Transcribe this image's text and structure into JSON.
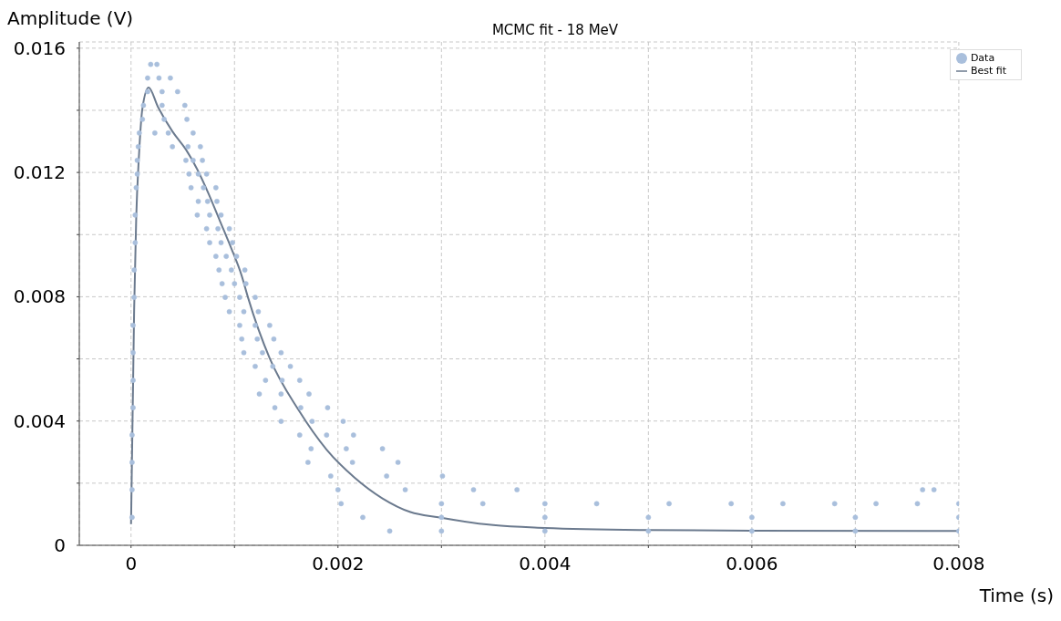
{
  "chart_data": {
    "type": "scatter",
    "title": "MCMC fit - 18 MeV",
    "xlabel": "Time (s)",
    "ylabel": "Amplitude (V)",
    "xlim": [
      -0.0005,
      0.008
    ],
    "ylim": [
      0,
      0.0162
    ],
    "xticks": [
      {
        "value": 0,
        "label": "0"
      },
      {
        "value": 0.001,
        "label": null
      },
      {
        "value": 0.002,
        "label": "0.002"
      },
      {
        "value": 0.003,
        "label": null
      },
      {
        "value": 0.004,
        "label": "0.004"
      },
      {
        "value": 0.005,
        "label": null
      },
      {
        "value": 0.006,
        "label": "0.006"
      },
      {
        "value": 0.007,
        "label": null
      },
      {
        "value": 0.008,
        "label": "0.008"
      }
    ],
    "yticks": [
      {
        "value": 0,
        "label": "0"
      },
      {
        "value": 0.002,
        "label": null
      },
      {
        "value": 0.004,
        "label": "0.004"
      },
      {
        "value": 0.006,
        "label": null
      },
      {
        "value": 0.008,
        "label": "0.008"
      },
      {
        "value": 0.01,
        "label": null
      },
      {
        "value": 0.012,
        "label": "0.012"
      },
      {
        "value": 0.014,
        "label": null
      },
      {
        "value": 0.016,
        "label": "0.016"
      }
    ],
    "grid": true,
    "legend": "top right",
    "line_style": "solid",
    "series": [
      {
        "name": "Data",
        "marker": "circle",
        "color": "#a9bfdc",
        "x": [
          1e-05,
          1e-05,
          1e-05,
          1e-05,
          2e-05,
          2e-05,
          2e-05,
          2e-05,
          3e-05,
          3e-05,
          4e-05,
          4e-05,
          5e-05,
          6e-05,
          6e-05,
          7e-05,
          0.00019,
          0.00025,
          0.00016,
          0.00027,
          0.00038,
          0.00016,
          0.0003,
          0.00045,
          0.00012,
          0.0003,
          0.00052,
          0.00011,
          0.00032,
          0.00054,
          8e-05,
          0.00023,
          0.00036,
          0.0006,
          0.0004,
          0.00055,
          0.00067,
          0.00053,
          0.0006,
          0.00069,
          0.00056,
          0.00065,
          0.00073,
          0.00058,
          0.0007,
          0.00082,
          0.00065,
          0.00074,
          0.00083,
          0.00064,
          0.00076,
          0.00087,
          0.00073,
          0.00084,
          0.00095,
          0.00076,
          0.00087,
          0.00098,
          0.00082,
          0.00092,
          0.00102,
          0.00085,
          0.00097,
          0.0011,
          0.00088,
          0.001,
          0.00111,
          0.00091,
          0.00105,
          0.0012,
          0.00095,
          0.00109,
          0.00123,
          0.00105,
          0.0012,
          0.00134,
          0.00107,
          0.00122,
          0.00138,
          0.00109,
          0.00127,
          0.00145,
          0.0012,
          0.00137,
          0.00154,
          0.0013,
          0.00146,
          0.00163,
          0.00124,
          0.00145,
          0.00172,
          0.00139,
          0.00164,
          0.0019,
          0.00145,
          0.00175,
          0.00205,
          0.00163,
          0.00189,
          0.00215,
          0.00174,
          0.00208,
          0.00243,
          0.00171,
          0.00214,
          0.00258,
          0.00193,
          0.00247,
          0.00301,
          0.002,
          0.00265,
          0.00331,
          0.00373,
          0.00765,
          0.00776,
          0.00203,
          0.003,
          0.0034,
          0.004,
          0.0045,
          0.0052,
          0.0058,
          0.0063,
          0.0068,
          0.0072,
          0.0076,
          0.008,
          0.00224,
          0.003,
          0.004,
          0.005,
          0.006,
          0.007,
          0.008,
          0.0025,
          0.003,
          0.004,
          0.005,
          0.006,
          0.007,
          0.008
        ],
        "values": [
          0.0009,
          0.00179,
          0.00267,
          0.00355,
          0.00443,
          0.00531,
          0.0062,
          0.00708,
          0.00798,
          0.00886,
          0.00974,
          0.01063,
          0.01151,
          0.01195,
          0.01239,
          0.01283,
          0.01548,
          0.01548,
          0.01504,
          0.01504,
          0.01504,
          0.0146,
          0.0146,
          0.0146,
          0.01416,
          0.01416,
          0.01416,
          0.01371,
          0.01371,
          0.01371,
          0.01327,
          0.01327,
          0.01327,
          0.01327,
          0.01283,
          0.01283,
          0.01283,
          0.01239,
          0.01239,
          0.01239,
          0.01195,
          0.01195,
          0.01195,
          0.01151,
          0.01151,
          0.01151,
          0.01107,
          0.01107,
          0.01107,
          0.01063,
          0.01063,
          0.01063,
          0.01019,
          0.01019,
          0.01019,
          0.00974,
          0.00974,
          0.00974,
          0.0093,
          0.0093,
          0.0093,
          0.00886,
          0.00886,
          0.00886,
          0.00842,
          0.00842,
          0.00842,
          0.00798,
          0.00798,
          0.00798,
          0.00752,
          0.00752,
          0.00752,
          0.00708,
          0.00708,
          0.00708,
          0.00664,
          0.00664,
          0.00664,
          0.0062,
          0.0062,
          0.0062,
          0.00576,
          0.00576,
          0.00576,
          0.00531,
          0.00531,
          0.00531,
          0.00487,
          0.00487,
          0.00487,
          0.00443,
          0.00443,
          0.00443,
          0.00399,
          0.00399,
          0.00399,
          0.00355,
          0.00355,
          0.00355,
          0.00311,
          0.00311,
          0.00311,
          0.00267,
          0.00267,
          0.00267,
          0.00223,
          0.00223,
          0.00223,
          0.00179,
          0.00179,
          0.00179,
          0.00179,
          0.00179,
          0.00179,
          0.00134,
          0.00134,
          0.00134,
          0.00134,
          0.00134,
          0.00134,
          0.00134,
          0.00134,
          0.00134,
          0.00134,
          0.00134,
          0.00134,
          0.0009,
          0.0009,
          0.0009,
          0.0009,
          0.0009,
          0.0009,
          0.0009,
          0.00046,
          0.00046,
          0.00046,
          0.00046,
          0.00046,
          0.00046,
          0.00046
        ]
      },
      {
        "name": "Best fit",
        "type": "line",
        "marker": "none",
        "color": "#6b7a8e",
        "x": [
          0,
          3e-05,
          5e-05,
          7.6e-05,
          0.00011,
          0.00017,
          0.00026,
          0.0004,
          0.00053,
          0.00064,
          0.00075,
          0.00086,
          0.00097,
          0.00107,
          0.00113,
          0.00134,
          0.00162,
          0.00189,
          0.00216,
          0.00243,
          0.0027,
          0.00297,
          0.0035,
          0.004,
          0.005,
          0.006,
          0.008
        ],
        "values": [
          0.00068,
          0.00759,
          0.01053,
          0.0125,
          0.01406,
          0.01473,
          0.01411,
          0.01332,
          0.01274,
          0.0121,
          0.01131,
          0.01043,
          0.00955,
          0.00867,
          0.00798,
          0.00602,
          0.00435,
          0.00308,
          0.00218,
          0.00151,
          0.00107,
          0.0009,
          0.00065,
          0.00056,
          0.00049,
          0.00047,
          0.00046
        ]
      }
    ]
  }
}
